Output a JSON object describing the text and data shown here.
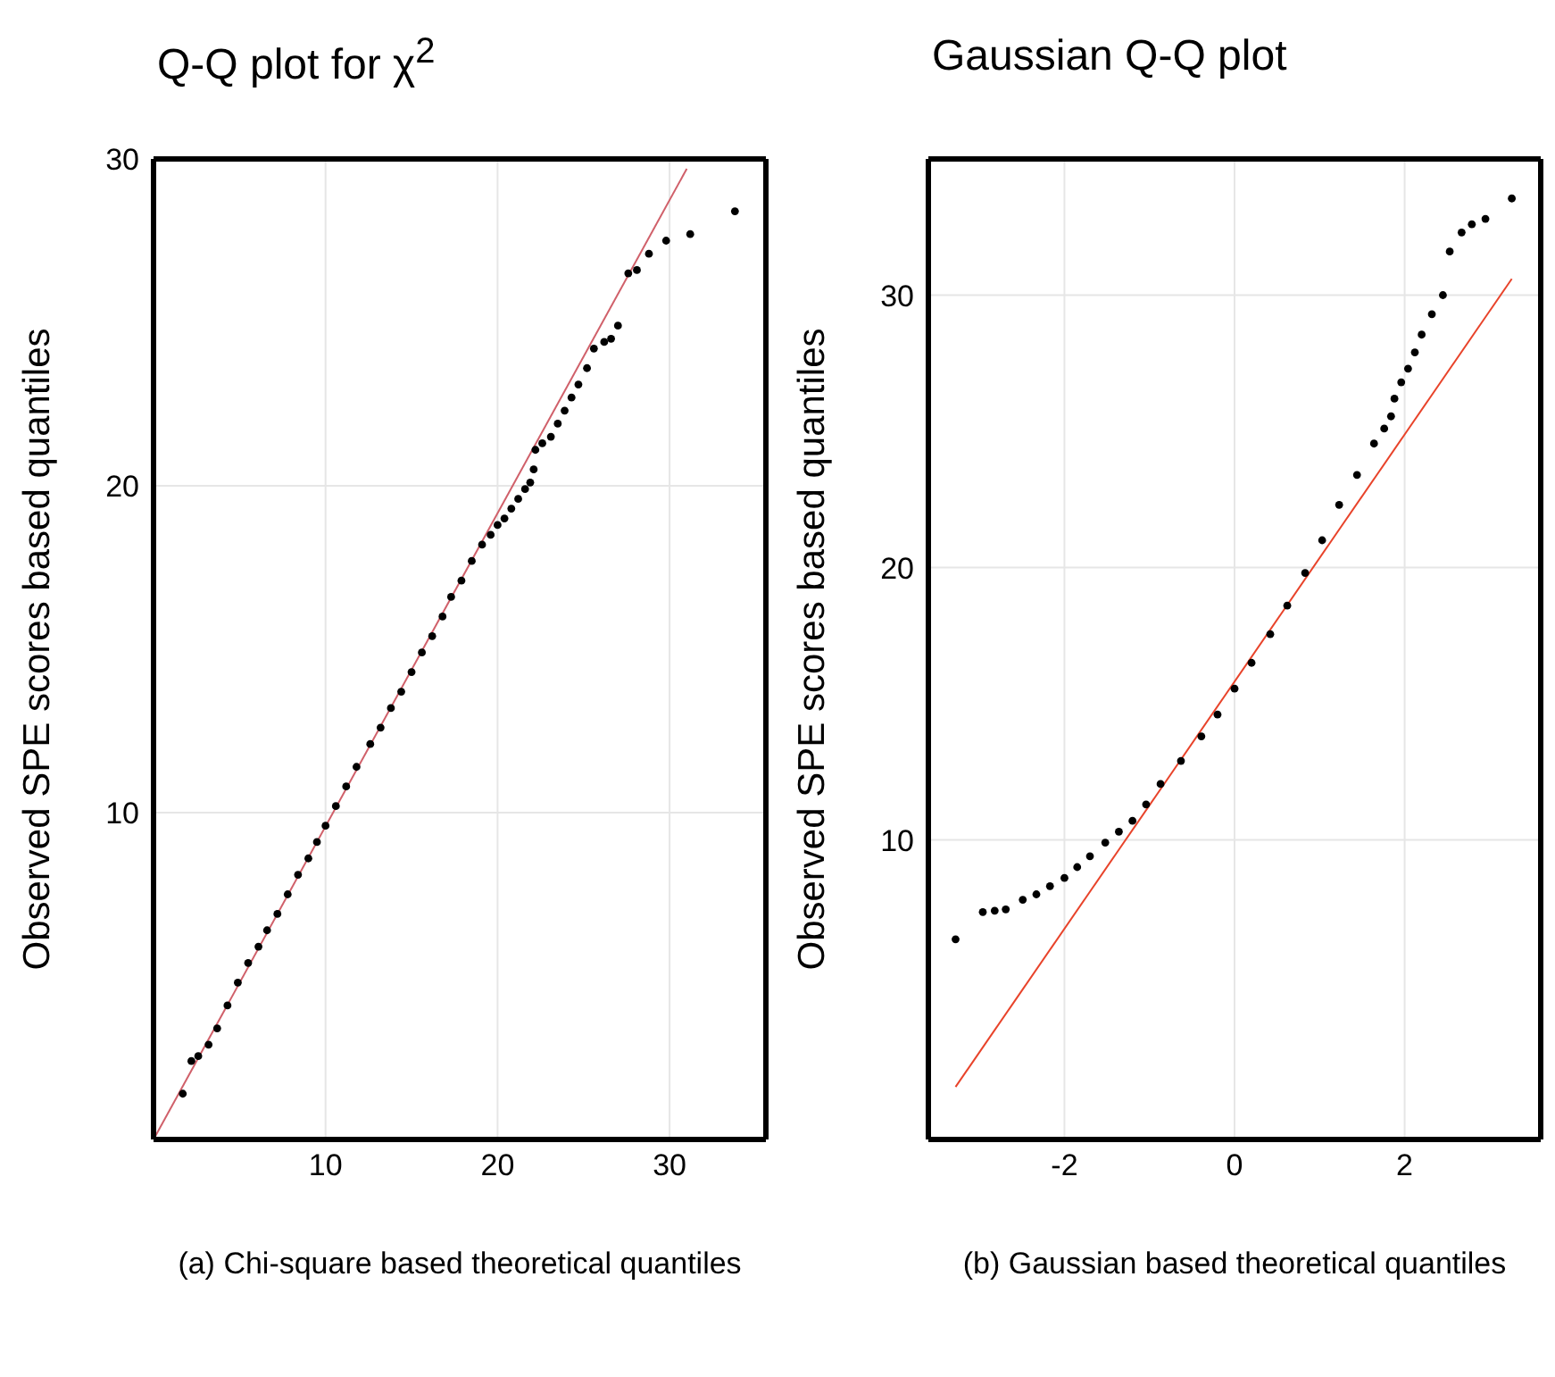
{
  "chart_data": [
    {
      "type": "scatter",
      "title": "Q-Q plot for χ$^{2}$",
      "xlabel": "(a) Chi-square based theoretical quantiles",
      "ylabel": "Observed SPE scores based quantiles",
      "xlim": [
        0,
        35.6
      ],
      "ylim": [
        0,
        30
      ],
      "xticks": [
        10,
        20,
        30
      ],
      "yticks": [
        10,
        20,
        30
      ],
      "grid": true,
      "marker": "circle",
      "series": [
        {
          "color": "#000000",
          "x": [
            1.7,
            2.2,
            2.6,
            3.2,
            3.7,
            4.3,
            4.9,
            5.5,
            6.1,
            6.6,
            7.2,
            7.8,
            8.4,
            9.0,
            9.5,
            10.0,
            10.6,
            11.2,
            11.8,
            12.6,
            13.2,
            13.8,
            14.4,
            15.0,
            15.6,
            16.2,
            16.8,
            17.3,
            17.9,
            18.5,
            19.1,
            19.6,
            20.0,
            20.4,
            20.8,
            21.2,
            21.6,
            21.9,
            22.1,
            22.2,
            22.6,
            23.1,
            23.5,
            23.9,
            24.3,
            24.7,
            25.2,
            25.6,
            26.2,
            26.6,
            27.0,
            27.6,
            28.1,
            28.8,
            29.8,
            31.2,
            33.8
          ],
          "values": [
            1.4,
            2.4,
            2.55,
            2.9,
            3.4,
            4.1,
            4.8,
            5.4,
            5.9,
            6.4,
            6.9,
            7.5,
            8.1,
            8.6,
            9.1,
            9.6,
            10.2,
            10.8,
            11.4,
            12.1,
            12.6,
            13.2,
            13.7,
            14.3,
            14.9,
            15.4,
            16.0,
            16.6,
            17.1,
            17.7,
            18.2,
            18.5,
            18.8,
            19.0,
            19.3,
            19.6,
            19.9,
            20.1,
            20.5,
            21.1,
            21.3,
            21.5,
            21.9,
            22.3,
            22.7,
            23.1,
            23.6,
            24.2,
            24.4,
            24.5,
            24.9,
            26.5,
            26.6,
            27.1,
            27.5,
            27.7,
            28.4
          ]
        },
        {
          "type": "line",
          "color": "#d0606a",
          "marker": "none",
          "x": [
            0,
            31
          ],
          "values": [
            0,
            29.7
          ]
        }
      ]
    },
    {
      "type": "scatter",
      "title": "Gaussian Q-Q plot",
      "xlabel": "(b) Gaussian based theoretical quantiles",
      "ylabel": "Observed SPE scores based quantiles",
      "xlim": [
        -3.6,
        3.6
      ],
      "ylim": [
        -1,
        35
      ],
      "xticks": [
        -2,
        0,
        2
      ],
      "yticks": [
        10,
        20,
        30
      ],
      "grid": true,
      "marker": "circle",
      "series": [
        {
          "color": "#000000",
          "x": [
            -3.28,
            -2.96,
            -2.82,
            -2.69,
            -2.49,
            -2.33,
            -2.17,
            -2.0,
            -1.85,
            -1.7,
            -1.52,
            -1.36,
            -1.2,
            -1.04,
            -0.87,
            -0.63,
            -0.39,
            -0.2,
            0.0,
            0.2,
            0.42,
            0.62,
            0.83,
            1.03,
            1.23,
            1.44,
            1.64,
            1.76,
            1.84,
            1.88,
            1.96,
            2.04,
            2.12,
            2.2,
            2.32,
            2.45,
            2.53,
            2.67,
            2.79,
            2.95,
            3.26
          ],
          "values": [
            6.35,
            7.35,
            7.4,
            7.45,
            7.8,
            8.0,
            8.3,
            8.6,
            9.0,
            9.4,
            9.9,
            10.3,
            10.7,
            11.3,
            12.05,
            12.9,
            13.8,
            14.6,
            15.55,
            16.5,
            17.55,
            18.6,
            19.8,
            21.0,
            22.3,
            23.4,
            24.55,
            25.1,
            25.55,
            26.2,
            26.8,
            27.3,
            27.9,
            28.55,
            29.3,
            30.0,
            31.6,
            32.3,
            32.6,
            32.8,
            33.55
          ]
        },
        {
          "type": "line",
          "color": "#e8432a",
          "marker": "none",
          "x": [
            -3.28,
            3.26
          ],
          "values": [
            0.93,
            30.6
          ]
        }
      ]
    }
  ]
}
